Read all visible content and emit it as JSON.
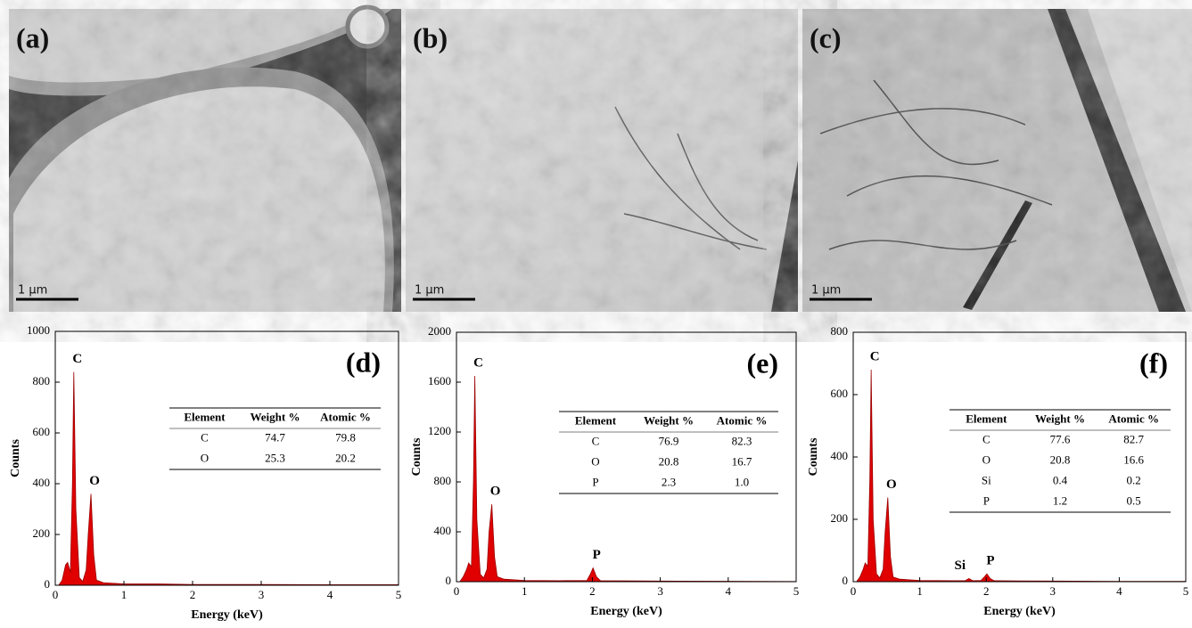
{
  "images": [
    {
      "label": "(a)",
      "scale_bar": "1 μm"
    },
    {
      "label": "(b)",
      "scale_bar": "1 μm"
    },
    {
      "label": "(c)",
      "scale_bar": "1 μm"
    }
  ],
  "chart_data": [
    {
      "type": "area",
      "title": "(d)",
      "x_label": "Energy (keV)",
      "y_label": "Counts",
      "color": "#e00000",
      "xlim": [
        0,
        5
      ],
      "xticks": [
        0,
        1,
        2,
        3,
        4,
        5
      ],
      "ylim": [
        0,
        1000
      ],
      "yticks": [
        0,
        200,
        400,
        600,
        800,
        1000
      ],
      "x": [
        0.05,
        0.1,
        0.15,
        0.18,
        0.22,
        0.25,
        0.27,
        0.3,
        0.35,
        0.4,
        0.45,
        0.48,
        0.52,
        0.56,
        0.6,
        0.7,
        1,
        1.5,
        2,
        3,
        4,
        5
      ],
      "values": [
        0,
        20,
        80,
        90,
        50,
        400,
        840,
        300,
        30,
        15,
        60,
        200,
        360,
        120,
        20,
        10,
        5,
        5,
        3,
        3,
        2,
        2
      ],
      "annotations": [
        {
          "text": "C",
          "x": 0.27,
          "y": 840
        },
        {
          "text": "O",
          "x": 0.52,
          "y": 360
        }
      ],
      "table": {
        "columns": [
          "Element",
          "Weight %",
          "Atomic %"
        ],
        "rows": [
          [
            "C",
            "74.7",
            "79.8"
          ],
          [
            "O",
            "25.3",
            "20.2"
          ]
        ]
      }
    },
    {
      "type": "area",
      "title": "(e)",
      "x_label": "Energy (keV)",
      "y_label": "Counts",
      "color": "#e00000",
      "xlim": [
        0,
        5
      ],
      "xticks": [
        0,
        1,
        2,
        3,
        4,
        5
      ],
      "ylim": [
        0,
        2000
      ],
      "yticks": [
        0,
        400,
        800,
        1200,
        1600,
        2000
      ],
      "x": [
        0.05,
        0.1,
        0.15,
        0.18,
        0.22,
        0.25,
        0.27,
        0.3,
        0.35,
        0.4,
        0.45,
        0.48,
        0.52,
        0.56,
        0.6,
        0.7,
        1,
        1.5,
        1.92,
        1.97,
        2.01,
        2.06,
        2.12,
        3,
        4,
        5
      ],
      "values": [
        0,
        40,
        100,
        150,
        120,
        800,
        1650,
        500,
        60,
        30,
        100,
        400,
        620,
        200,
        40,
        20,
        10,
        8,
        10,
        60,
        110,
        40,
        8,
        5,
        3,
        2
      ],
      "annotations": [
        {
          "text": "C",
          "x": 0.27,
          "y": 1650
        },
        {
          "text": "O",
          "x": 0.52,
          "y": 620
        },
        {
          "text": "P",
          "x": 2.01,
          "y": 110
        }
      ],
      "table": {
        "columns": [
          "Element",
          "Weight %",
          "Atomic %"
        ],
        "rows": [
          [
            "C",
            "76.9",
            "82.3"
          ],
          [
            "O",
            "20.8",
            "16.7"
          ],
          [
            "P",
            "2.3",
            "1.0"
          ]
        ]
      }
    },
    {
      "type": "area",
      "title": "(f)",
      "x_label": "Energy (keV)",
      "y_label": "Counts",
      "color": "#e00000",
      "xlim": [
        0,
        5
      ],
      "xticks": [
        0,
        1,
        2,
        3,
        4,
        5
      ],
      "ylim": [
        0,
        800
      ],
      "yticks": [
        0,
        200,
        400,
        600,
        800
      ],
      "x": [
        0.05,
        0.1,
        0.15,
        0.18,
        0.22,
        0.25,
        0.27,
        0.3,
        0.35,
        0.4,
        0.45,
        0.48,
        0.52,
        0.56,
        0.6,
        0.7,
        1,
        1.5,
        1.68,
        1.74,
        1.8,
        1.92,
        1.97,
        2.01,
        2.06,
        2.12,
        3,
        4,
        5
      ],
      "values": [
        0,
        15,
        40,
        60,
        50,
        330,
        680,
        200,
        25,
        12,
        40,
        160,
        270,
        80,
        15,
        8,
        4,
        3,
        3,
        10,
        3,
        4,
        15,
        25,
        10,
        3,
        2,
        1,
        1
      ],
      "annotations": [
        {
          "text": "C",
          "x": 0.27,
          "y": 680
        },
        {
          "text": "O",
          "x": 0.52,
          "y": 270
        },
        {
          "text": "Si",
          "x": 1.74,
          "y": 10
        },
        {
          "text": "P",
          "x": 2.01,
          "y": 25
        }
      ],
      "table": {
        "columns": [
          "Element",
          "Weight %",
          "Atomic %"
        ],
        "rows": [
          [
            "C",
            "77.6",
            "82.7"
          ],
          [
            "O",
            "20.8",
            "16.6"
          ],
          [
            "Si",
            "0.4",
            "0.2"
          ],
          [
            "P",
            "1.2",
            "0.5"
          ]
        ]
      }
    }
  ]
}
